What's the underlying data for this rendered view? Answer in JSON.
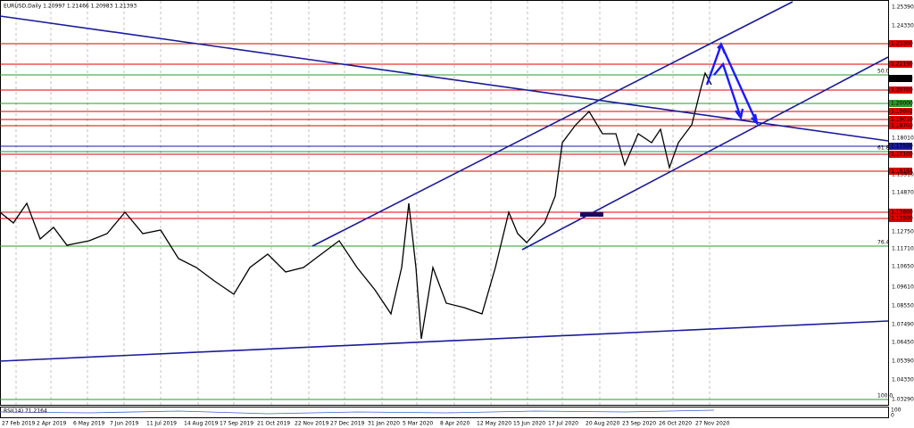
{
  "header": {
    "title": "EURUSD,Daily  1.20997 1.21466 1.20983 1.21393"
  },
  "price_axis": [
    "1.25390",
    "1.24330",
    "1.18010",
    "1.15910",
    "1.14870",
    "1.12750",
    "1.11710",
    "1.10650",
    "1.09610",
    "1.08550",
    "1.07490",
    "1.06450",
    "1.05390",
    "1.04330",
    "1.03290"
  ],
  "levels": [
    {
      "label": "1.23300",
      "kind": "red"
    },
    {
      "label": "1.22190",
      "kind": "red"
    },
    {
      "label": "1.21393",
      "kind": "current"
    },
    {
      "label": "1.20700",
      "kind": "red"
    },
    {
      "label": "1.20000",
      "kind": "green"
    },
    {
      "label": "1.19602",
      "kind": "red"
    },
    {
      "label": "1.19010",
      "kind": "red"
    },
    {
      "label": "1.18700",
      "kind": "red"
    },
    {
      "label": "1.17500",
      "kind": "blue"
    },
    {
      "label": "1.17100",
      "kind": "red"
    },
    {
      "label": "1.16184",
      "kind": "red"
    },
    {
      "label": "1.13800",
      "kind": "red"
    },
    {
      "label": "1.13500",
      "kind": "red"
    }
  ],
  "fib_labels": [
    "50.0",
    "61.8",
    "76.4",
    "100.0"
  ],
  "dates": [
    "27 Feb 2019",
    "2 Apr 2019",
    "6 May 2019",
    "7 Jun 2019",
    "11 Jul 2019",
    "14 Aug 2019",
    "17 Sep 2019",
    "21 Oct 2019",
    "22 Nov 2019",
    "27 Dec 2019",
    "31 Jan 2020",
    "5 Mar 2020",
    "8 Apr 2020",
    "12 May 2020",
    "15 Jun 2020",
    "17 Jul 2020",
    "20 Aug 2020",
    "23 Sep 2020",
    "26 Oct 2020",
    "27 Nov 2020"
  ],
  "indicator": {
    "label": "RSI(14) 71.2164",
    "axis": [
      "100",
      "0"
    ]
  }
}
